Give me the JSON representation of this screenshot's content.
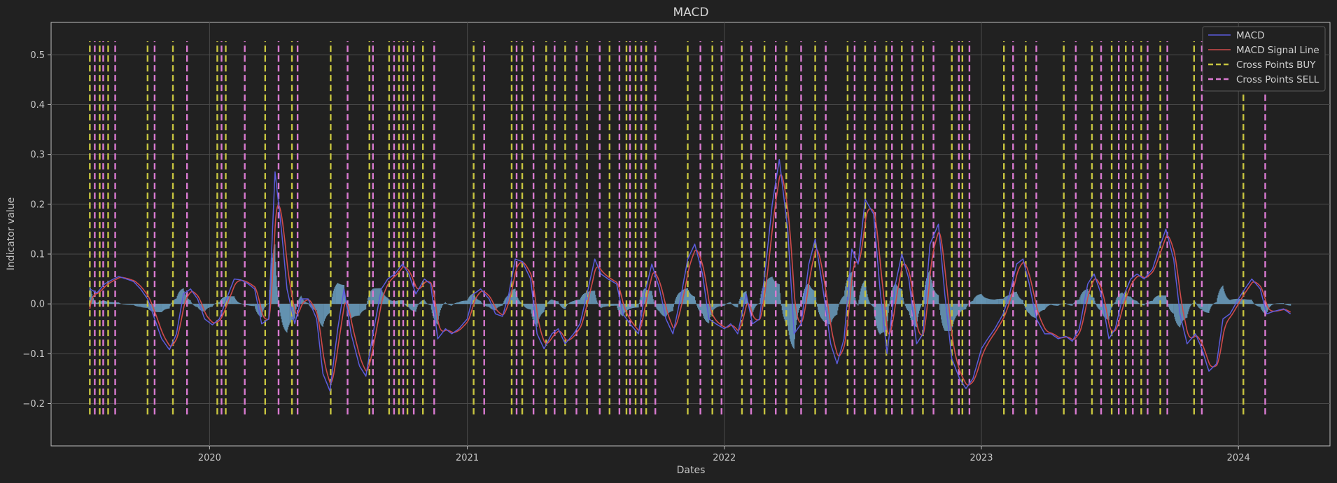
{
  "chart_data": {
    "type": "line",
    "title": "MACD",
    "xlabel": "Dates",
    "ylabel": "Indicator value",
    "x_range": [
      "2019-05-21",
      "2024-05-10"
    ],
    "ylim": [
      -0.285,
      0.565
    ],
    "x_ticks": [
      {
        "date": "2020-01-01",
        "label": "2020"
      },
      {
        "date": "2021-01-01",
        "label": "2021"
      },
      {
        "date": "2022-01-01",
        "label": "2022"
      },
      {
        "date": "2023-01-01",
        "label": "2023"
      },
      {
        "date": "2024-01-01",
        "label": "2024"
      }
    ],
    "y_ticks": [
      {
        "value": -0.2,
        "label": "−0.2"
      },
      {
        "value": -0.1,
        "label": "−0.1"
      },
      {
        "value": 0.0,
        "label": "0.0"
      },
      {
        "value": 0.1,
        "label": "0.1"
      },
      {
        "value": 0.2,
        "label": "0.2"
      },
      {
        "value": 0.3,
        "label": "0.3"
      },
      {
        "value": 0.4,
        "label": "0.4"
      },
      {
        "value": 0.5,
        "label": "0.5"
      }
    ],
    "grid": true,
    "legend_position": "top-right",
    "cross_line_range": [
      -0.222,
      0.527
    ],
    "series": [
      {
        "name": "MACD",
        "color": "#5b5bdc",
        "style": "line",
        "points": [
          [
            "2019-07-15",
            0.03
          ],
          [
            "2019-07-25",
            0.022
          ],
          [
            "2019-08-05",
            0.04
          ],
          [
            "2019-08-15",
            0.048
          ],
          [
            "2019-08-25",
            0.055
          ],
          [
            "2019-09-05",
            0.05
          ],
          [
            "2019-09-15",
            0.045
          ],
          [
            "2019-09-25",
            0.03
          ],
          [
            "2019-10-05",
            0.01
          ],
          [
            "2019-10-15",
            -0.03
          ],
          [
            "2019-10-25",
            -0.07
          ],
          [
            "2019-11-05",
            -0.092
          ],
          [
            "2019-11-15",
            -0.06
          ],
          [
            "2019-11-25",
            0.02
          ],
          [
            "2019-12-05",
            0.03
          ],
          [
            "2019-12-15",
            0.01
          ],
          [
            "2019-12-25",
            -0.03
          ],
          [
            "2020-01-05",
            -0.042
          ],
          [
            "2020-01-15",
            -0.03
          ],
          [
            "2020-01-25",
            0.01
          ],
          [
            "2020-02-05",
            0.05
          ],
          [
            "2020-02-15",
            0.048
          ],
          [
            "2020-02-25",
            0.04
          ],
          [
            "2020-03-05",
            0.03
          ],
          [
            "2020-03-15",
            -0.04
          ],
          [
            "2020-03-25",
            -0.03
          ],
          [
            "2020-04-03",
            0.265
          ],
          [
            "2020-04-12",
            0.15
          ],
          [
            "2020-04-20",
            0.03
          ],
          [
            "2020-05-01",
            -0.04
          ],
          [
            "2020-05-10",
            0.01
          ],
          [
            "2020-05-20",
            0.01
          ],
          [
            "2020-06-01",
            -0.03
          ],
          [
            "2020-06-10",
            -0.14
          ],
          [
            "2020-06-20",
            -0.175
          ],
          [
            "2020-07-01",
            -0.05
          ],
          [
            "2020-07-10",
            0.03
          ],
          [
            "2020-07-20",
            -0.06
          ],
          [
            "2020-08-01",
            -0.125
          ],
          [
            "2020-08-10",
            -0.145
          ],
          [
            "2020-08-20",
            -0.06
          ],
          [
            "2020-09-01",
            0.03
          ],
          [
            "2020-09-10",
            0.05
          ],
          [
            "2020-09-20",
            0.06
          ],
          [
            "2020-10-01",
            0.08
          ],
          [
            "2020-10-10",
            0.06
          ],
          [
            "2020-10-20",
            0.02
          ],
          [
            "2020-11-01",
            0.05
          ],
          [
            "2020-11-10",
            0.04
          ],
          [
            "2020-11-20",
            -0.07
          ],
          [
            "2020-12-01",
            -0.05
          ],
          [
            "2020-12-10",
            -0.06
          ],
          [
            "2020-12-20",
            -0.05
          ],
          [
            "2021-01-01",
            -0.03
          ],
          [
            "2021-01-10",
            0.02
          ],
          [
            "2021-01-20",
            0.03
          ],
          [
            "2021-02-01",
            0.01
          ],
          [
            "2021-02-10",
            -0.02
          ],
          [
            "2021-02-20",
            -0.025
          ],
          [
            "2021-03-01",
            0.02
          ],
          [
            "2021-03-10",
            0.09
          ],
          [
            "2021-03-20",
            0.085
          ],
          [
            "2021-04-01",
            0.05
          ],
          [
            "2021-04-10",
            -0.06
          ],
          [
            "2021-04-20",
            -0.09
          ],
          [
            "2021-05-01",
            -0.06
          ],
          [
            "2021-05-10",
            -0.05
          ],
          [
            "2021-05-20",
            -0.08
          ],
          [
            "2021-06-01",
            -0.06
          ],
          [
            "2021-06-10",
            -0.04
          ],
          [
            "2021-06-20",
            0.02
          ],
          [
            "2021-07-01",
            0.09
          ],
          [
            "2021-07-10",
            0.06
          ],
          [
            "2021-07-20",
            0.05
          ],
          [
            "2021-08-01",
            0.04
          ],
          [
            "2021-08-10",
            -0.02
          ],
          [
            "2021-08-20",
            -0.04
          ],
          [
            "2021-09-01",
            -0.06
          ],
          [
            "2021-09-10",
            0.02
          ],
          [
            "2021-09-20",
            0.08
          ],
          [
            "2021-10-01",
            0.03
          ],
          [
            "2021-10-10",
            -0.03
          ],
          [
            "2021-10-20",
            -0.06
          ],
          [
            "2021-11-01",
            0.02
          ],
          [
            "2021-11-10",
            0.09
          ],
          [
            "2021-11-20",
            0.12
          ],
          [
            "2021-12-01",
            0.06
          ],
          [
            "2021-12-10",
            -0.03
          ],
          [
            "2021-12-20",
            -0.04
          ],
          [
            "2022-01-01",
            -0.05
          ],
          [
            "2022-01-10",
            -0.04
          ],
          [
            "2022-01-20",
            -0.06
          ],
          [
            "2022-02-01",
            0.02
          ],
          [
            "2022-02-10",
            -0.04
          ],
          [
            "2022-02-20",
            -0.03
          ],
          [
            "2022-03-01",
            0.08
          ],
          [
            "2022-03-10",
            0.2
          ],
          [
            "2022-03-20",
            0.29
          ],
          [
            "2022-04-01",
            0.15
          ],
          [
            "2022-04-10",
            -0.06
          ],
          [
            "2022-04-20",
            -0.04
          ],
          [
            "2022-05-01",
            0.08
          ],
          [
            "2022-05-10",
            0.13
          ],
          [
            "2022-05-20",
            0.04
          ],
          [
            "2022-06-01",
            -0.08
          ],
          [
            "2022-06-10",
            -0.12
          ],
          [
            "2022-06-20",
            -0.07
          ],
          [
            "2022-07-01",
            0.11
          ],
          [
            "2022-07-10",
            0.08
          ],
          [
            "2022-07-20",
            0.21
          ],
          [
            "2022-08-01",
            0.18
          ],
          [
            "2022-08-10",
            0.03
          ],
          [
            "2022-08-20",
            -0.1
          ],
          [
            "2022-09-01",
            0.04
          ],
          [
            "2022-09-10",
            0.1
          ],
          [
            "2022-09-20",
            0.05
          ],
          [
            "2022-10-01",
            -0.08
          ],
          [
            "2022-10-10",
            -0.06
          ],
          [
            "2022-10-20",
            0.12
          ],
          [
            "2022-11-01",
            0.16
          ],
          [
            "2022-11-10",
            0.02
          ],
          [
            "2022-11-20",
            -0.11
          ],
          [
            "2022-12-01",
            -0.15
          ],
          [
            "2022-12-10",
            -0.17
          ],
          [
            "2022-12-20",
            -0.15
          ],
          [
            "2023-01-01",
            -0.09
          ],
          [
            "2023-01-10",
            -0.07
          ],
          [
            "2023-01-20",
            -0.05
          ],
          [
            "2023-02-01",
            -0.02
          ],
          [
            "2023-02-10",
            0.02
          ],
          [
            "2023-02-20",
            0.08
          ],
          [
            "2023-03-01",
            0.09
          ],
          [
            "2023-03-10",
            0.04
          ],
          [
            "2023-03-20",
            -0.03
          ],
          [
            "2023-04-01",
            -0.06
          ],
          [
            "2023-04-10",
            -0.06
          ],
          [
            "2023-04-20",
            -0.07
          ],
          [
            "2023-05-01",
            -0.065
          ],
          [
            "2023-05-10",
            -0.075
          ],
          [
            "2023-05-20",
            -0.05
          ],
          [
            "2023-06-01",
            0.04
          ],
          [
            "2023-06-10",
            0.06
          ],
          [
            "2023-06-20",
            0.02
          ],
          [
            "2023-07-01",
            -0.07
          ],
          [
            "2023-07-10",
            -0.05
          ],
          [
            "2023-07-20",
            0.01
          ],
          [
            "2023-08-01",
            0.05
          ],
          [
            "2023-08-10",
            0.06
          ],
          [
            "2023-08-20",
            0.05
          ],
          [
            "2023-09-01",
            0.07
          ],
          [
            "2023-09-10",
            0.11
          ],
          [
            "2023-09-20",
            0.15
          ],
          [
            "2023-10-01",
            0.09
          ],
          [
            "2023-10-10",
            -0.02
          ],
          [
            "2023-10-20",
            -0.08
          ],
          [
            "2023-11-01",
            -0.06
          ],
          [
            "2023-11-10",
            -0.09
          ],
          [
            "2023-11-20",
            -0.135
          ],
          [
            "2023-12-01",
            -0.12
          ],
          [
            "2023-12-10",
            -0.03
          ],
          [
            "2023-12-20",
            -0.02
          ],
          [
            "2024-01-01",
            0.01
          ],
          [
            "2024-01-10",
            0.03
          ],
          [
            "2024-01-20",
            0.05
          ],
          [
            "2024-02-01",
            0.03
          ],
          [
            "2024-02-10",
            -0.02
          ],
          [
            "2024-02-20",
            -0.015
          ],
          [
            "2024-03-05",
            -0.01
          ],
          [
            "2024-03-15",
            -0.02
          ]
        ]
      },
      {
        "name": "MACD Signal Line",
        "color": "#cf4a4a",
        "style": "line",
        "smoothing_span": 9,
        "derived_from": "MACD"
      },
      {
        "name": "Histogram",
        "color": "#6fa5c8",
        "style": "bar",
        "derived_from": "MACD minus MACD Signal Line"
      }
    ],
    "cross_points_buy": {
      "name": "Cross Points BUY",
      "color": "#c7c43f",
      "dates": [
        "2019-07-15",
        "2019-07-29",
        "2019-08-10",
        "2019-10-05",
        "2019-11-10",
        "2020-01-12",
        "2020-01-24",
        "2020-03-20",
        "2020-04-27",
        "2020-06-21",
        "2020-08-15",
        "2020-09-12",
        "2020-09-26",
        "2020-10-08",
        "2020-10-30",
        "2021-01-10",
        "2021-03-05",
        "2021-03-20",
        "2021-04-23",
        "2021-05-20",
        "2021-06-20",
        "2021-07-22",
        "2021-08-15",
        "2021-08-28",
        "2021-09-12",
        "2021-11-10",
        "2021-12-15",
        "2022-01-26",
        "2022-02-27",
        "2022-03-30",
        "2022-05-10",
        "2022-06-25",
        "2022-07-20",
        "2022-08-19",
        "2022-09-10",
        "2022-10-10",
        "2022-11-20",
        "2022-12-05",
        "2023-02-02",
        "2023-03-05",
        "2023-04-28",
        "2023-06-07",
        "2023-07-05",
        "2023-07-25",
        "2023-08-16",
        "2023-09-12",
        "2023-10-30",
        "2024-01-08"
      ]
    },
    "cross_points_sell": {
      "name": "Cross Points SELL",
      "color": "#d97ad0",
      "dates": [
        "2019-07-22",
        "2019-08-03",
        "2019-08-20",
        "2019-10-15",
        "2019-11-30",
        "2020-01-18",
        "2020-02-20",
        "2020-04-08",
        "2020-05-05",
        "2020-07-15",
        "2020-08-20",
        "2020-09-19",
        "2020-10-02",
        "2020-10-17",
        "2020-11-15",
        "2021-01-25",
        "2021-03-12",
        "2021-04-05",
        "2021-05-05",
        "2021-06-05",
        "2021-07-08",
        "2021-08-05",
        "2021-08-20",
        "2021-09-05",
        "2021-09-25",
        "2021-11-28",
        "2021-12-28",
        "2022-02-08",
        "2022-03-15",
        "2022-04-20",
        "2022-05-25",
        "2022-07-05",
        "2022-08-03",
        "2022-08-27",
        "2022-09-25",
        "2022-10-25",
        "2022-11-30",
        "2022-12-15",
        "2023-02-15",
        "2023-03-20",
        "2023-05-15",
        "2023-06-20",
        "2023-07-15",
        "2023-08-04",
        "2023-08-25",
        "2023-09-22",
        "2023-11-10",
        "2024-02-08"
      ]
    }
  }
}
